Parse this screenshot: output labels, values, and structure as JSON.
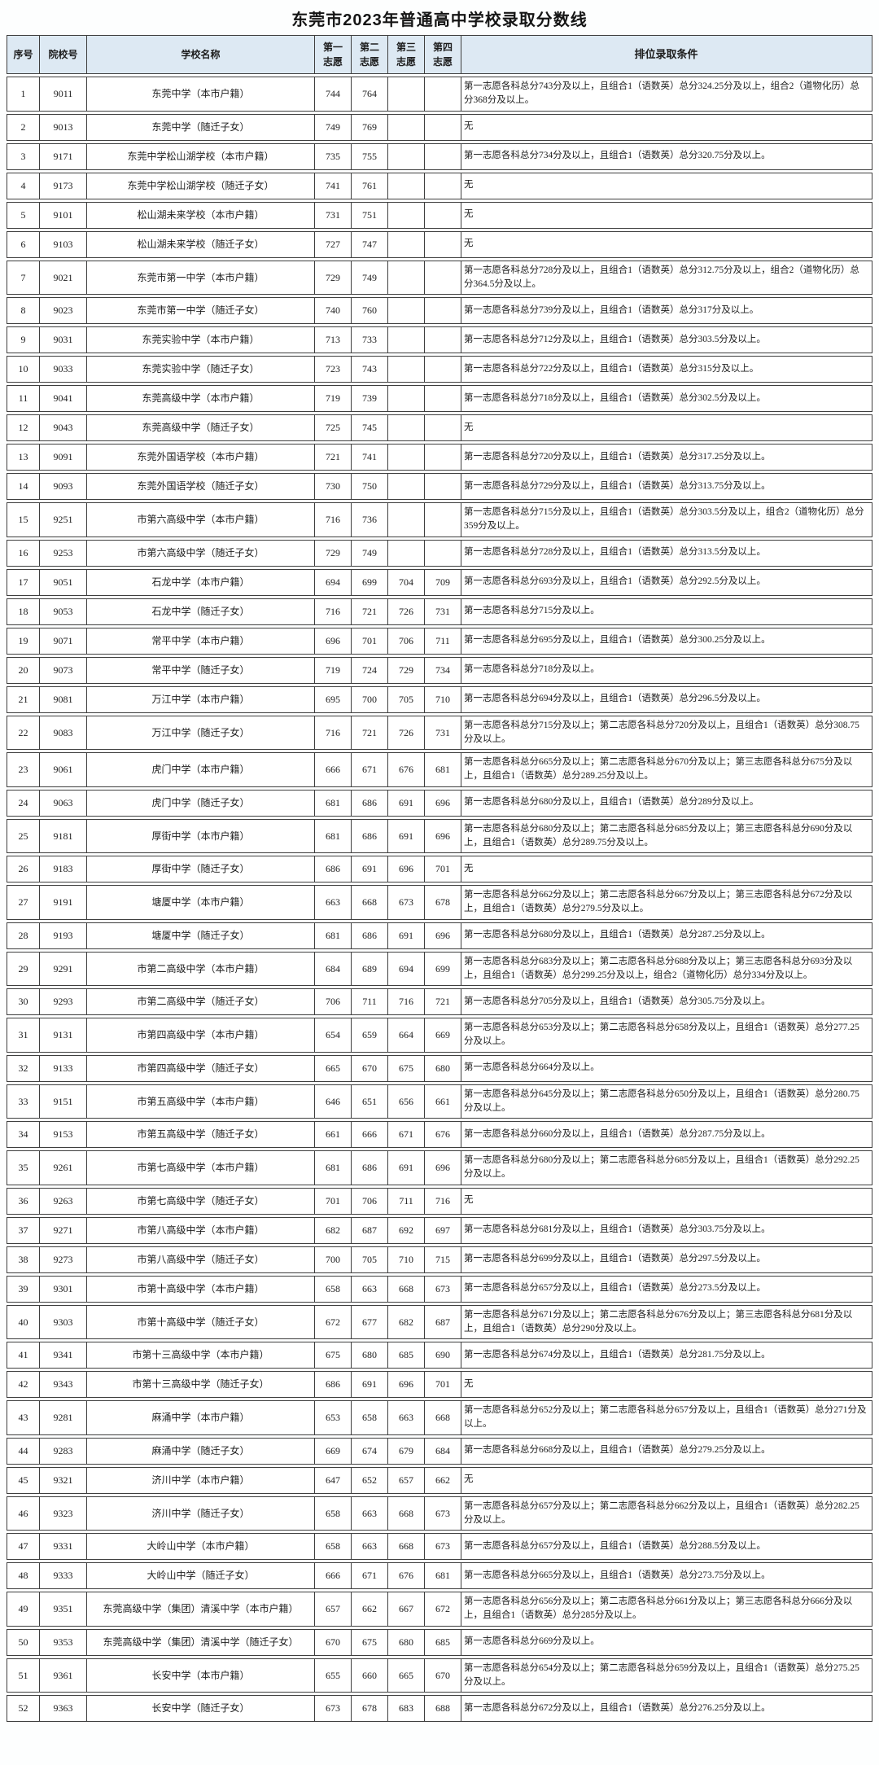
{
  "title": "东莞市2023年普通高中学校录取分数线",
  "colors": {
    "page_bg": "#fdfefe",
    "row_bg": "#ffffff",
    "header_bg": "#dde9f3",
    "border": "#3f3f3f",
    "text": "#1d1d1d"
  },
  "table": {
    "headers": {
      "no": "序号",
      "code": "院校号",
      "name": "学校名称",
      "c1": "第一志愿",
      "c2": "第二志愿",
      "c3": "第三志愿",
      "c4": "第四志愿",
      "cond": "排位录取条件"
    },
    "rows": [
      {
        "no": "1",
        "code": "9011",
        "name": "东莞中学（本市户籍）",
        "c1": "744",
        "c2": "764",
        "c3": "",
        "c4": "",
        "cond": "第一志愿各科总分743分及以上，且组合1（语数英）总分324.25分及以上，组合2（道物化历）总分368分及以上。"
      },
      {
        "no": "2",
        "code": "9013",
        "name": "东莞中学（随迁子女）",
        "c1": "749",
        "c2": "769",
        "c3": "",
        "c4": "",
        "cond": "无"
      },
      {
        "no": "3",
        "code": "9171",
        "name": "东莞中学松山湖学校（本市户籍）",
        "c1": "735",
        "c2": "755",
        "c3": "",
        "c4": "",
        "cond": "第一志愿各科总分734分及以上，且组合1（语数英）总分320.75分及以上。"
      },
      {
        "no": "4",
        "code": "9173",
        "name": "东莞中学松山湖学校（随迁子女）",
        "c1": "741",
        "c2": "761",
        "c3": "",
        "c4": "",
        "cond": "无"
      },
      {
        "no": "5",
        "code": "9101",
        "name": "松山湖未来学校（本市户籍）",
        "c1": "731",
        "c2": "751",
        "c3": "",
        "c4": "",
        "cond": "无"
      },
      {
        "no": "6",
        "code": "9103",
        "name": "松山湖未来学校（随迁子女）",
        "c1": "727",
        "c2": "747",
        "c3": "",
        "c4": "",
        "cond": "无"
      },
      {
        "no": "7",
        "code": "9021",
        "name": "东莞市第一中学（本市户籍）",
        "c1": "729",
        "c2": "749",
        "c3": "",
        "c4": "",
        "cond": "第一志愿各科总分728分及以上，且组合1（语数英）总分312.75分及以上，组合2（道物化历）总分364.5分及以上。"
      },
      {
        "no": "8",
        "code": "9023",
        "name": "东莞市第一中学（随迁子女）",
        "c1": "740",
        "c2": "760",
        "c3": "",
        "c4": "",
        "cond": "第一志愿各科总分739分及以上，且组合1（语数英）总分317分及以上。"
      },
      {
        "no": "9",
        "code": "9031",
        "name": "东莞实验中学（本市户籍）",
        "c1": "713",
        "c2": "733",
        "c3": "",
        "c4": "",
        "cond": "第一志愿各科总分712分及以上，且组合1（语数英）总分303.5分及以上。"
      },
      {
        "no": "10",
        "code": "9033",
        "name": "东莞实验中学（随迁子女）",
        "c1": "723",
        "c2": "743",
        "c3": "",
        "c4": "",
        "cond": "第一志愿各科总分722分及以上，且组合1（语数英）总分315分及以上。"
      },
      {
        "no": "11",
        "code": "9041",
        "name": "东莞高级中学（本市户籍）",
        "c1": "719",
        "c2": "739",
        "c3": "",
        "c4": "",
        "cond": "第一志愿各科总分718分及以上，且组合1（语数英）总分302.5分及以上。"
      },
      {
        "no": "12",
        "code": "9043",
        "name": "东莞高级中学（随迁子女）",
        "c1": "725",
        "c2": "745",
        "c3": "",
        "c4": "",
        "cond": "无"
      },
      {
        "no": "13",
        "code": "9091",
        "name": "东莞外国语学校（本市户籍）",
        "c1": "721",
        "c2": "741",
        "c3": "",
        "c4": "",
        "cond": "第一志愿各科总分720分及以上，且组合1（语数英）总分317.25分及以上。"
      },
      {
        "no": "14",
        "code": "9093",
        "name": "东莞外国语学校（随迁子女）",
        "c1": "730",
        "c2": "750",
        "c3": "",
        "c4": "",
        "cond": "第一志愿各科总分729分及以上，且组合1（语数英）总分313.75分及以上。"
      },
      {
        "no": "15",
        "code": "9251",
        "name": "市第六高级中学（本市户籍）",
        "c1": "716",
        "c2": "736",
        "c3": "",
        "c4": "",
        "cond": "第一志愿各科总分715分及以上，且组合1（语数英）总分303.5分及以上，组合2（道物化历）总分359分及以上。"
      },
      {
        "no": "16",
        "code": "9253",
        "name": "市第六高级中学（随迁子女）",
        "c1": "729",
        "c2": "749",
        "c3": "",
        "c4": "",
        "cond": "第一志愿各科总分728分及以上，且组合1（语数英）总分313.5分及以上。"
      },
      {
        "no": "17",
        "code": "9051",
        "name": "石龙中学（本市户籍）",
        "c1": "694",
        "c2": "699",
        "c3": "704",
        "c4": "709",
        "cond": "第一志愿各科总分693分及以上，且组合1（语数英）总分292.5分及以上。"
      },
      {
        "no": "18",
        "code": "9053",
        "name": "石龙中学（随迁子女）",
        "c1": "716",
        "c2": "721",
        "c3": "726",
        "c4": "731",
        "cond": "第一志愿各科总分715分及以上。"
      },
      {
        "no": "19",
        "code": "9071",
        "name": "常平中学（本市户籍）",
        "c1": "696",
        "c2": "701",
        "c3": "706",
        "c4": "711",
        "cond": "第一志愿各科总分695分及以上，且组合1（语数英）总分300.25分及以上。"
      },
      {
        "no": "20",
        "code": "9073",
        "name": "常平中学（随迁子女）",
        "c1": "719",
        "c2": "724",
        "c3": "729",
        "c4": "734",
        "cond": "第一志愿各科总分718分及以上。"
      },
      {
        "no": "21",
        "code": "9081",
        "name": "万江中学（本市户籍）",
        "c1": "695",
        "c2": "700",
        "c3": "705",
        "c4": "710",
        "cond": "第一志愿各科总分694分及以上，且组合1（语数英）总分296.5分及以上。"
      },
      {
        "no": "22",
        "code": "9083",
        "name": "万江中学（随迁子女）",
        "c1": "716",
        "c2": "721",
        "c3": "726",
        "c4": "731",
        "cond": "第一志愿各科总分715分及以上；第二志愿各科总分720分及以上，且组合1（语数英）总分308.75分及以上。"
      },
      {
        "no": "23",
        "code": "9061",
        "name": "虎门中学（本市户籍）",
        "c1": "666",
        "c2": "671",
        "c3": "676",
        "c4": "681",
        "cond": "第一志愿各科总分665分及以上；第二志愿各科总分670分及以上；第三志愿各科总分675分及以上，且组合1（语数英）总分289.25分及以上。"
      },
      {
        "no": "24",
        "code": "9063",
        "name": "虎门中学（随迁子女）",
        "c1": "681",
        "c2": "686",
        "c3": "691",
        "c4": "696",
        "cond": "第一志愿各科总分680分及以上，且组合1（语数英）总分289分及以上。"
      },
      {
        "no": "25",
        "code": "9181",
        "name": "厚街中学（本市户籍）",
        "c1": "681",
        "c2": "686",
        "c3": "691",
        "c4": "696",
        "cond": "第一志愿各科总分680分及以上；第二志愿各科总分685分及以上；第三志愿各科总分690分及以上，且组合1（语数英）总分289.75分及以上。"
      },
      {
        "no": "26",
        "code": "9183",
        "name": "厚街中学（随迁子女）",
        "c1": "686",
        "c2": "691",
        "c3": "696",
        "c4": "701",
        "cond": "无"
      },
      {
        "no": "27",
        "code": "9191",
        "name": "塘厦中学（本市户籍）",
        "c1": "663",
        "c2": "668",
        "c3": "673",
        "c4": "678",
        "cond": "第一志愿各科总分662分及以上；第二志愿各科总分667分及以上；第三志愿各科总分672分及以上，且组合1（语数英）总分279.5分及以上。"
      },
      {
        "no": "28",
        "code": "9193",
        "name": "塘厦中学（随迁子女）",
        "c1": "681",
        "c2": "686",
        "c3": "691",
        "c4": "696",
        "cond": "第一志愿各科总分680分及以上，且组合1（语数英）总分287.25分及以上。"
      },
      {
        "no": "29",
        "code": "9291",
        "name": "市第二高级中学（本市户籍）",
        "c1": "684",
        "c2": "689",
        "c3": "694",
        "c4": "699",
        "cond": "第一志愿各科总分683分及以上；第二志愿各科总分688分及以上；第三志愿各科总分693分及以上，且组合1（语数英）总分299.25分及以上，组合2（道物化历）总分334分及以上。"
      },
      {
        "no": "30",
        "code": "9293",
        "name": "市第二高级中学（随迁子女）",
        "c1": "706",
        "c2": "711",
        "c3": "716",
        "c4": "721",
        "cond": "第一志愿各科总分705分及以上，且组合1（语数英）总分305.75分及以上。"
      },
      {
        "no": "31",
        "code": "9131",
        "name": "市第四高级中学（本市户籍）",
        "c1": "654",
        "c2": "659",
        "c3": "664",
        "c4": "669",
        "cond": "第一志愿各科总分653分及以上；第二志愿各科总分658分及以上，且组合1（语数英）总分277.25分及以上。"
      },
      {
        "no": "32",
        "code": "9133",
        "name": "市第四高级中学（随迁子女）",
        "c1": "665",
        "c2": "670",
        "c3": "675",
        "c4": "680",
        "cond": "第一志愿各科总分664分及以上。"
      },
      {
        "no": "33",
        "code": "9151",
        "name": "市第五高级中学（本市户籍）",
        "c1": "646",
        "c2": "651",
        "c3": "656",
        "c4": "661",
        "cond": "第一志愿各科总分645分及以上；第二志愿各科总分650分及以上，且组合1（语数英）总分280.75分及以上。"
      },
      {
        "no": "34",
        "code": "9153",
        "name": "市第五高级中学（随迁子女）",
        "c1": "661",
        "c2": "666",
        "c3": "671",
        "c4": "676",
        "cond": "第一志愿各科总分660分及以上，且组合1（语数英）总分287.75分及以上。"
      },
      {
        "no": "35",
        "code": "9261",
        "name": "市第七高级中学（本市户籍）",
        "c1": "681",
        "c2": "686",
        "c3": "691",
        "c4": "696",
        "cond": "第一志愿各科总分680分及以上；第二志愿各科总分685分及以上，且组合1（语数英）总分292.25分及以上。"
      },
      {
        "no": "36",
        "code": "9263",
        "name": "市第七高级中学（随迁子女）",
        "c1": "701",
        "c2": "706",
        "c3": "711",
        "c4": "716",
        "cond": "无"
      },
      {
        "no": "37",
        "code": "9271",
        "name": "市第八高级中学（本市户籍）",
        "c1": "682",
        "c2": "687",
        "c3": "692",
        "c4": "697",
        "cond": "第一志愿各科总分681分及以上，且组合1（语数英）总分303.75分及以上。"
      },
      {
        "no": "38",
        "code": "9273",
        "name": "市第八高级中学（随迁子女）",
        "c1": "700",
        "c2": "705",
        "c3": "710",
        "c4": "715",
        "cond": "第一志愿各科总分699分及以上，且组合1（语数英）总分297.5分及以上。"
      },
      {
        "no": "39",
        "code": "9301",
        "name": "市第十高级中学（本市户籍）",
        "c1": "658",
        "c2": "663",
        "c3": "668",
        "c4": "673",
        "cond": "第一志愿各科总分657分及以上，且组合1（语数英）总分273.5分及以上。"
      },
      {
        "no": "40",
        "code": "9303",
        "name": "市第十高级中学（随迁子女）",
        "c1": "672",
        "c2": "677",
        "c3": "682",
        "c4": "687",
        "cond": "第一志愿各科总分671分及以上；第二志愿各科总分676分及以上；第三志愿各科总分681分及以上，且组合1（语数英）总分290分及以上。"
      },
      {
        "no": "41",
        "code": "9341",
        "name": "市第十三高级中学（本市户籍）",
        "c1": "675",
        "c2": "680",
        "c3": "685",
        "c4": "690",
        "cond": "第一志愿各科总分674分及以上，且组合1（语数英）总分281.75分及以上。"
      },
      {
        "no": "42",
        "code": "9343",
        "name": "市第十三高级中学（随迁子女）",
        "c1": "686",
        "c2": "691",
        "c3": "696",
        "c4": "701",
        "cond": "无"
      },
      {
        "no": "43",
        "code": "9281",
        "name": "麻涌中学（本市户籍）",
        "c1": "653",
        "c2": "658",
        "c3": "663",
        "c4": "668",
        "cond": "第一志愿各科总分652分及以上；第二志愿各科总分657分及以上，且组合1（语数英）总分271分及以上。"
      },
      {
        "no": "44",
        "code": "9283",
        "name": "麻涌中学（随迁子女）",
        "c1": "669",
        "c2": "674",
        "c3": "679",
        "c4": "684",
        "cond": "第一志愿各科总分668分及以上，且组合1（语数英）总分279.25分及以上。"
      },
      {
        "no": "45",
        "code": "9321",
        "name": "济川中学（本市户籍）",
        "c1": "647",
        "c2": "652",
        "c3": "657",
        "c4": "662",
        "cond": "无"
      },
      {
        "no": "46",
        "code": "9323",
        "name": "济川中学（随迁子女）",
        "c1": "658",
        "c2": "663",
        "c3": "668",
        "c4": "673",
        "cond": "第一志愿各科总分657分及以上；第二志愿各科总分662分及以上，且组合1（语数英）总分282.25分及以上。"
      },
      {
        "no": "47",
        "code": "9331",
        "name": "大岭山中学（本市户籍）",
        "c1": "658",
        "c2": "663",
        "c3": "668",
        "c4": "673",
        "cond": "第一志愿各科总分657分及以上，且组合1（语数英）总分288.5分及以上。"
      },
      {
        "no": "48",
        "code": "9333",
        "name": "大岭山中学（随迁子女）",
        "c1": "666",
        "c2": "671",
        "c3": "676",
        "c4": "681",
        "cond": "第一志愿各科总分665分及以上，且组合1（语数英）总分273.75分及以上。"
      },
      {
        "no": "49",
        "code": "9351",
        "name": "东莞高级中学（集团）清溪中学（本市户籍）",
        "c1": "657",
        "c2": "662",
        "c3": "667",
        "c4": "672",
        "cond": "第一志愿各科总分656分及以上；第二志愿各科总分661分及以上；第三志愿各科总分666分及以上，且组合1（语数英）总分285分及以上。"
      },
      {
        "no": "50",
        "code": "9353",
        "name": "东莞高级中学（集团）清溪中学（随迁子女）",
        "c1": "670",
        "c2": "675",
        "c3": "680",
        "c4": "685",
        "cond": "第一志愿各科总分669分及以上。"
      },
      {
        "no": "51",
        "code": "9361",
        "name": "长安中学（本市户籍）",
        "c1": "655",
        "c2": "660",
        "c3": "665",
        "c4": "670",
        "cond": "第一志愿各科总分654分及以上；第二志愿各科总分659分及以上，且组合1（语数英）总分275.25分及以上。"
      },
      {
        "no": "52",
        "code": "9363",
        "name": "长安中学（随迁子女）",
        "c1": "673",
        "c2": "678",
        "c3": "683",
        "c4": "688",
        "cond": "第一志愿各科总分672分及以上，且组合1（语数英）总分276.25分及以上。"
      }
    ]
  }
}
